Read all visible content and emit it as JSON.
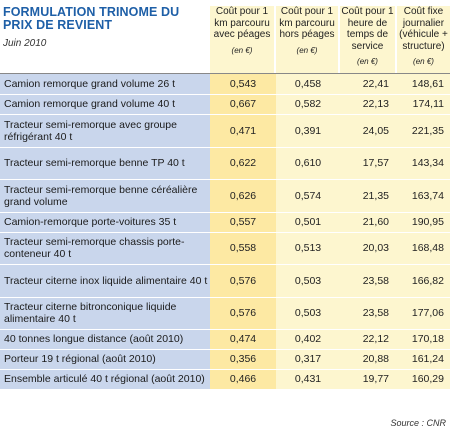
{
  "title": "FORMULATION TRINOME DU PRIX DE REVIENT",
  "subtitle": "Juin 2010",
  "columns": [
    {
      "label": "Coût pour 1 km parcouru avec péages",
      "unit": "(en €)"
    },
    {
      "label": "Coût pour 1 km parcouru hors péages",
      "unit": "(en €)"
    },
    {
      "label": "Coût pour 1 heure de temps de service",
      "unit": "(en €)"
    },
    {
      "label": "Coût fixe journalier (véhicule + structure)",
      "unit": "(en €)"
    }
  ],
  "rows": [
    {
      "label": "Camion remorque grand volume 26 t",
      "values": [
        "0,543",
        "0,458",
        "22,41",
        "148,61"
      ]
    },
    {
      "label": "Camion remorque grand volume 40 t",
      "values": [
        "0,667",
        "0,582",
        "22,13",
        "174,11"
      ]
    },
    {
      "label": "Tracteur semi-remorque avec groupe réfrigérant 40 t",
      "values": [
        "0,471",
        "0,391",
        "24,05",
        "221,35"
      ]
    },
    {
      "label": "Tracteur semi-remorque benne TP 40 t",
      "values": [
        "0,622",
        "0,610",
        "17,57",
        "143,34"
      ]
    },
    {
      "label": "Tracteur semi-remorque benne céréalière grand volume",
      "values": [
        "0,626",
        "0,574",
        "21,35",
        "163,74"
      ]
    },
    {
      "label": "Camion-remorque porte-voitures 35 t",
      "values": [
        "0,557",
        "0,501",
        "21,60",
        "190,95"
      ]
    },
    {
      "label": "Tracteur semi-remorque chassis porte-conteneur 40 t",
      "values": [
        "0,558",
        "0,513",
        "20,03",
        "168,48"
      ]
    },
    {
      "label": "Tracteur citerne inox liquide alimentaire 40 t",
      "values": [
        "0,576",
        "0,503",
        "23,58",
        "166,82"
      ]
    },
    {
      "label": "Tracteur citerne bitronconique liquide alimentaire 40 t",
      "values": [
        "0,576",
        "0,503",
        "23,58",
        "177,06"
      ]
    },
    {
      "label": "40 tonnes longue distance (août 2010)",
      "values": [
        "0,474",
        "0,402",
        "22,12",
        "170,18"
      ]
    },
    {
      "label": "Porteur 19 t régional (août 2010)",
      "values": [
        "0,356",
        "0,317",
        "20,88",
        "161,24"
      ]
    },
    {
      "label": "Ensemble articulé 40 t régional (août 2010)",
      "values": [
        "0,466",
        "0,431",
        "19,77",
        "160,29"
      ]
    }
  ],
  "source": "Source : CNR",
  "colors": {
    "title": "#1e5fa7",
    "label_bg": "#c9d6ec",
    "first_col_bg": "#fde9a3",
    "col_bg": "#fdf6cf"
  }
}
